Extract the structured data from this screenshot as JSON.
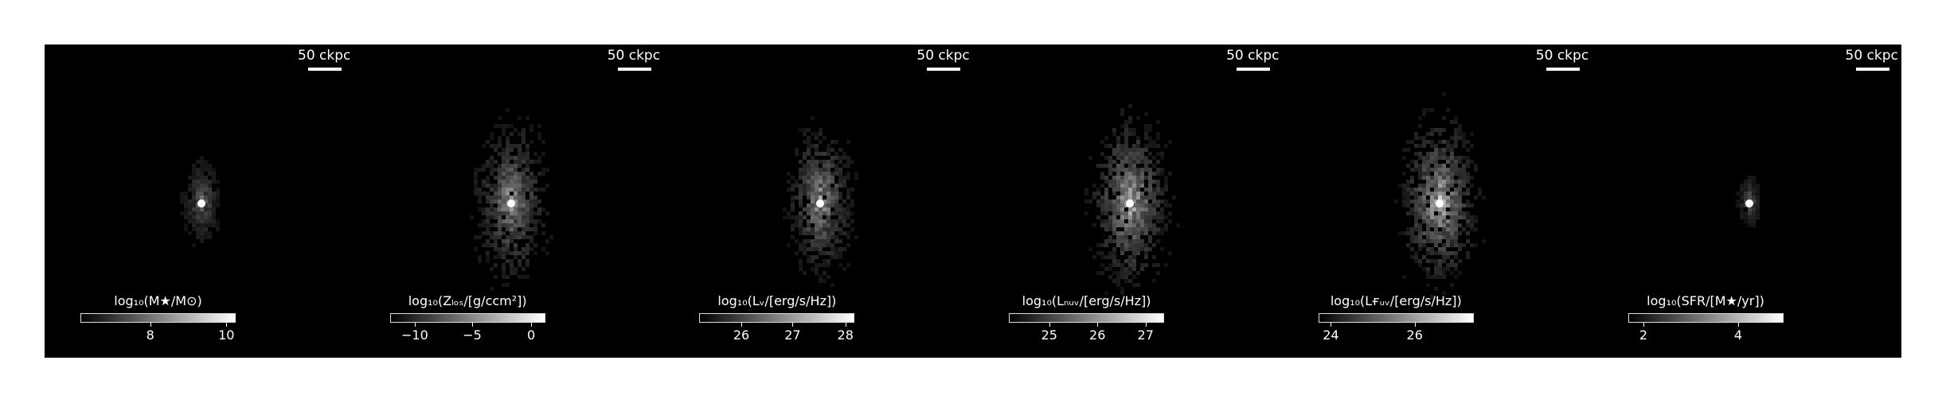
{
  "scalebar_label": "50 ckpc",
  "panels": [
    {
      "cb_title": "log₁₀(M★/M⊙)",
      "ticks": [
        "8",
        "10"
      ],
      "tick_frac": [
        0.45,
        0.94
      ],
      "intensity": 0.55,
      "spread": 0.55
    },
    {
      "cb_title": "log₁₀(Zₗₒₛ/[g/ccm²])",
      "ticks": [
        "−10",
        "−5",
        "0"
      ],
      "tick_frac": [
        0.16,
        0.53,
        0.91
      ],
      "intensity": 0.75,
      "spread": 1.0
    },
    {
      "cb_title": "log₁₀(Lᵥ/[erg/s/Hz])",
      "ticks": [
        "26",
        "27",
        "28"
      ],
      "tick_frac": [
        0.27,
        0.6,
        0.94
      ],
      "intensity": 0.8,
      "spread": 0.9
    },
    {
      "cb_title": "log₁₀(Lₙᵤᵥ/[erg/s/Hz])",
      "ticks": [
        "25",
        "26",
        "27"
      ],
      "tick_frac": [
        0.26,
        0.57,
        0.88
      ],
      "intensity": 0.95,
      "spread": 1.0
    },
    {
      "cb_title": "log₁₀(Lғᵤᵥ/[erg/s/Hz])",
      "ticks": [
        "24",
        "26"
      ],
      "tick_frac": [
        0.08,
        0.62
      ],
      "intensity": 0.95,
      "spread": 1.0
    },
    {
      "cb_title": "log₁₀(SFR/[M★/yr])",
      "ticks": [
        "2",
        "4"
      ],
      "tick_frac": [
        0.1,
        0.71
      ],
      "intensity": 0.5,
      "spread": 0.35
    }
  ]
}
